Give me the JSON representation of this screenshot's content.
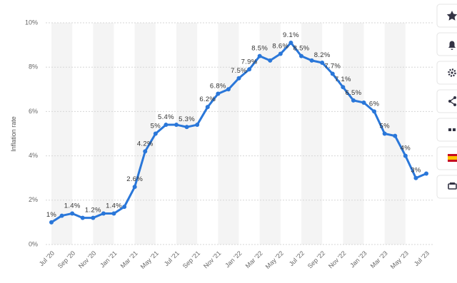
{
  "chart_data": {
    "type": "line",
    "y_label": "Inflation rate",
    "categories": [
      "Jul '20",
      null,
      "Sep '20",
      null,
      "Nov '20",
      null,
      "Jan '21",
      null,
      "Mar '21",
      null,
      "May '21",
      null,
      "Jul '21",
      null,
      "Sep '21",
      null,
      "Nov '21",
      null,
      "Jan '22",
      null,
      "Mar '22",
      null,
      "May '22",
      null,
      "Jul '22",
      null,
      "Sep '22",
      null,
      "Nov '22",
      null,
      "Jan '23",
      null,
      "Mar '23",
      null,
      "May '23",
      null,
      "Jul '23"
    ],
    "values": [
      1.0,
      1.3,
      1.4,
      1.2,
      1.2,
      1.4,
      1.4,
      1.7,
      2.6,
      4.2,
      5.0,
      5.4,
      5.4,
      5.3,
      5.4,
      6.2,
      6.8,
      7.0,
      7.5,
      7.9,
      8.5,
      8.3,
      8.6,
      9.1,
      8.5,
      8.3,
      8.2,
      7.7,
      7.1,
      6.5,
      6.4,
      6.0,
      5.0,
      4.9,
      4.0,
      3.0,
      3.2
    ],
    "value_labels": [
      "1%",
      null,
      "1.4%",
      null,
      "1.2%",
      null,
      "1.4%",
      null,
      "2.6%",
      "4.2%",
      "5%",
      "5.4%",
      null,
      "5.3%",
      null,
      "6.2%",
      "6.8%",
      null,
      "7.5%",
      "7.9%",
      "8.5%",
      null,
      "8.6%",
      "9.1%",
      "8.5%",
      null,
      "8.2%",
      "7.7%",
      "7.1%",
      "6.5%",
      null,
      "6%",
      "5%",
      null,
      "4%",
      "3%",
      null
    ],
    "color": "#2a77d9",
    "ylim": [
      0,
      10
    ],
    "yticks": [
      {
        "value": 0,
        "label": "0%"
      },
      {
        "value": 2,
        "label": "2%"
      },
      {
        "value": 4,
        "label": "4%"
      },
      {
        "value": 6,
        "label": "6%"
      },
      {
        "value": 8,
        "label": "8%"
      },
      {
        "value": 10,
        "label": "10%"
      }
    ],
    "grid": true
  }
}
